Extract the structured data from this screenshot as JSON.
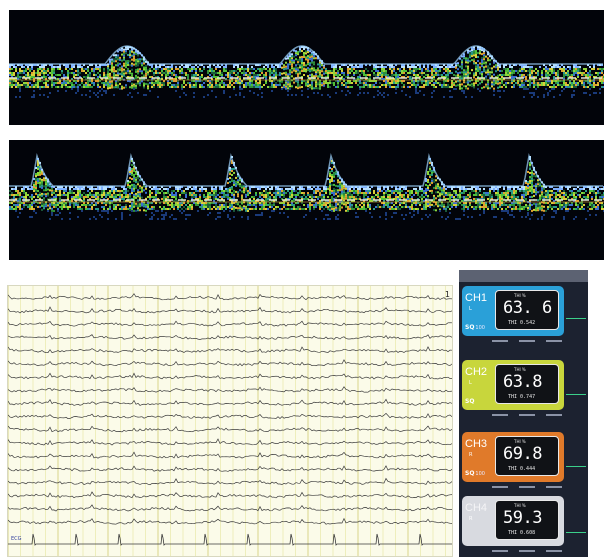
{
  "colors": {
    "doppler_bg": "#02040a",
    "eeg_bg": "#fbfbe9",
    "monitor_bg": "#1c2230",
    "ch1": "#2aa0d8",
    "ch2": "#c8d63c",
    "ch3": "#e07a2a",
    "ch4": "#d8dae0"
  },
  "eeg": {
    "channel_label": "ECG",
    "corner_mark": "1"
  },
  "monitor": {
    "header": "",
    "channels": [
      {
        "name": "CH1",
        "side": "L",
        "unit": "THI %",
        "value": "63. 6",
        "sub": "THI 0.542",
        "sq": "SQ",
        "sq_value": "100"
      },
      {
        "name": "CH2",
        "side": "L",
        "unit": "THI %",
        "value": "63.8",
        "sub": "THI 0.747",
        "sq": "SQ",
        "sq_value": ""
      },
      {
        "name": "CH3",
        "side": "R",
        "unit": "THI %",
        "value": "69.8",
        "sub": "THI 0.444",
        "sq": "SQ",
        "sq_value": "100"
      },
      {
        "name": "CH4",
        "side": "R",
        "unit": "THI %",
        "value": "59.3",
        "sub": "THI 0.608",
        "sq": "",
        "sq_value": ""
      }
    ]
  }
}
